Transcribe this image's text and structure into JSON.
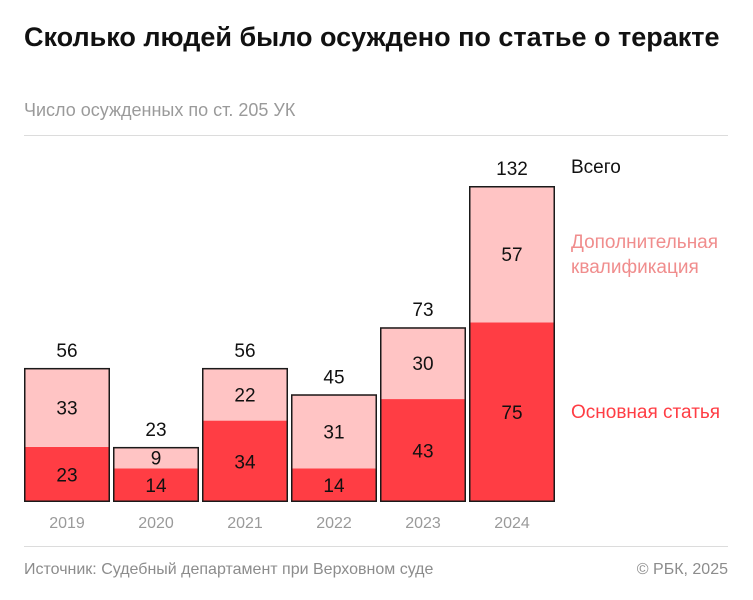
{
  "title": "Сколько людей было осуждено по статье о теракте",
  "subtitle": "Число осужденных по ст. 205 УК",
  "source": "Источник: Судебный департамент при Верховном суде",
  "copyright": "© РБК, 2025",
  "chart_data": {
    "type": "bar",
    "stacked": true,
    "categories": [
      "2019",
      "2020",
      "2021",
      "2022",
      "2023",
      "2024"
    ],
    "series": [
      {
        "name": "Основная статья",
        "values": [
          23,
          14,
          34,
          14,
          43,
          75
        ],
        "color": "#ff3d44"
      },
      {
        "name": "Дополнительная квалификация",
        "values": [
          33,
          9,
          22,
          31,
          30,
          57
        ],
        "color": "#ffc4c4"
      }
    ],
    "totals_label": "Всего",
    "totals": [
      56,
      23,
      56,
      45,
      73,
      132
    ],
    "ylim": [
      0,
      132
    ],
    "grid": false,
    "legend_placement": "right"
  }
}
